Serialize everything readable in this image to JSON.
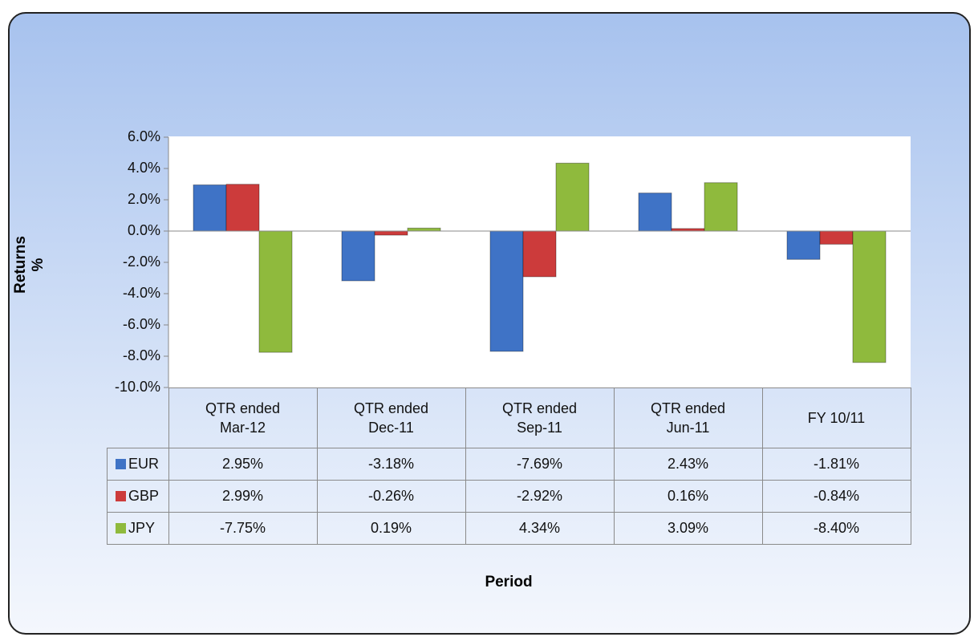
{
  "chart_data": {
    "type": "bar",
    "y_label": "Returns %",
    "x_label": "Period",
    "categories": [
      "QTR ended Mar-12",
      "QTR ended Dec-11",
      "QTR ended Sep-11",
      "QTR ended Jun-11",
      "FY 10/11"
    ],
    "series": [
      {
        "name": "EUR",
        "color": "#3f73c6",
        "values": [
          2.95,
          -3.18,
          -7.69,
          2.43,
          -1.81
        ],
        "value_labels": [
          "2.95%",
          "-3.18%",
          "-7.69%",
          "2.43%",
          "-1.81%"
        ]
      },
      {
        "name": "GBP",
        "color": "#cc3b3b",
        "values": [
          2.99,
          -0.26,
          -2.92,
          0.16,
          -0.84
        ],
        "value_labels": [
          "2.99%",
          "-0.26%",
          "-2.92%",
          "0.16%",
          "-0.84%"
        ]
      },
      {
        "name": "JPY",
        "color": "#8fba3d",
        "values": [
          -7.75,
          0.19,
          4.34,
          3.09,
          -8.4
        ],
        "value_labels": [
          "-7.75%",
          "0.19%",
          "4.34%",
          "3.09%",
          "-8.40%"
        ]
      }
    ],
    "ylim": [
      -10,
      6
    ],
    "yticks": [
      {
        "value": -10,
        "label": "-10.0%"
      },
      {
        "value": -8,
        "label": "-8.0%"
      },
      {
        "value": -6,
        "label": "-6.0%"
      },
      {
        "value": -4,
        "label": "-4.0%"
      },
      {
        "value": -2,
        "label": "-2.0%"
      },
      {
        "value": 0,
        "label": "0.0%"
      },
      {
        "value": 2,
        "label": "2.0%"
      },
      {
        "value": 4,
        "label": "4.0%"
      },
      {
        "value": 6,
        "label": "6.0%"
      }
    ]
  }
}
